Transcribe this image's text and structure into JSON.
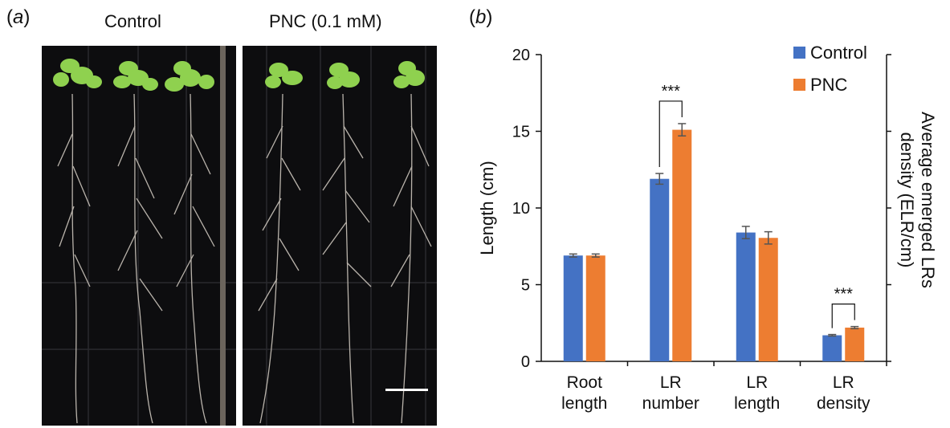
{
  "panel_a": {
    "label_open": "(",
    "label_letter": "a",
    "label_close": ")",
    "titles": [
      "Control",
      "PNC (0.1 mM)"
    ]
  },
  "panel_b": {
    "label_open": "(",
    "label_letter": "b",
    "label_close": ")"
  },
  "colors": {
    "control": "#4472c4",
    "pnc": "#ed7d31",
    "photo_bg": "#0d0d0f",
    "leaf": "#8fd14f"
  },
  "chart_data": {
    "type": "bar",
    "categories": [
      [
        "Root",
        "length"
      ],
      [
        "LR",
        "number"
      ],
      [
        "LR",
        "length"
      ],
      [
        "LR",
        "density"
      ]
    ],
    "series": [
      {
        "name": "Control",
        "values": [
          6.9,
          11.9,
          8.4,
          1.7
        ],
        "errors": [
          0.1,
          0.35,
          0.4,
          0.05
        ]
      },
      {
        "name": "PNC",
        "values": [
          6.9,
          15.1,
          8.05,
          2.2
        ],
        "errors": [
          0.1,
          0.4,
          0.4,
          0.07
        ]
      }
    ],
    "ylabel": "Length (cm)",
    "y2label": [
      "Average emerged LRs",
      "density (ELR/cm)"
    ],
    "ylim": [
      0,
      20
    ],
    "yticks": [
      0,
      5,
      10,
      15,
      20
    ],
    "legend_position": "top-right",
    "significance": [
      {
        "category_index": 1,
        "label": "***"
      },
      {
        "category_index": 3,
        "label": "***"
      }
    ]
  }
}
